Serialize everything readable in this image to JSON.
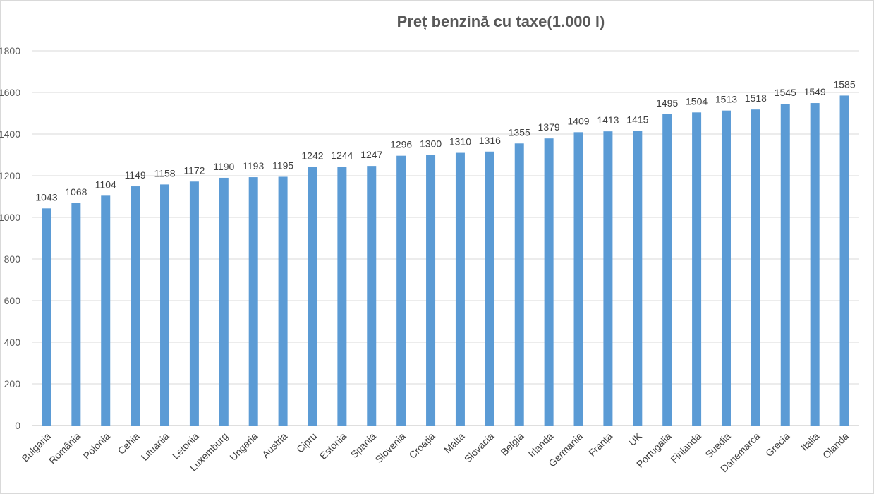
{
  "chart_data": {
    "type": "bar",
    "title": "Preț benzină cu taxe(1.000 l)",
    "xlabel": "",
    "ylabel": "",
    "ylim": [
      0,
      1800
    ],
    "yticks": [
      "0",
      "200",
      "400",
      "600",
      "800",
      "1000",
      "1200",
      "1400",
      "1600",
      "1800"
    ],
    "grid": true,
    "legend": "none",
    "bar_color": "#5b9bd5",
    "categories": [
      "Bulgaria",
      "România",
      "Polonia",
      "Cehia",
      "Lituania",
      "Letonia",
      "Luxemburg",
      "Ungaria",
      "Austria",
      "Cipru",
      "Estonia",
      "Spania",
      "Slovenia",
      "Croația",
      "Malta",
      "Slovacia",
      "Belgia",
      "Irlanda",
      "Germania",
      "Franța",
      "UK",
      "Portugalia",
      "Finlanda",
      "Suedia",
      "Danemarca",
      "Grecia",
      "Italia",
      "Olanda"
    ],
    "values": [
      1043,
      1068,
      1104,
      1149,
      1158,
      1172,
      1190,
      1193,
      1195,
      1242,
      1244,
      1247,
      1296,
      1300,
      1310,
      1316,
      1355,
      1379,
      1409,
      1413,
      1415,
      1495,
      1504,
      1513,
      1518,
      1545,
      1549,
      1585
    ]
  }
}
